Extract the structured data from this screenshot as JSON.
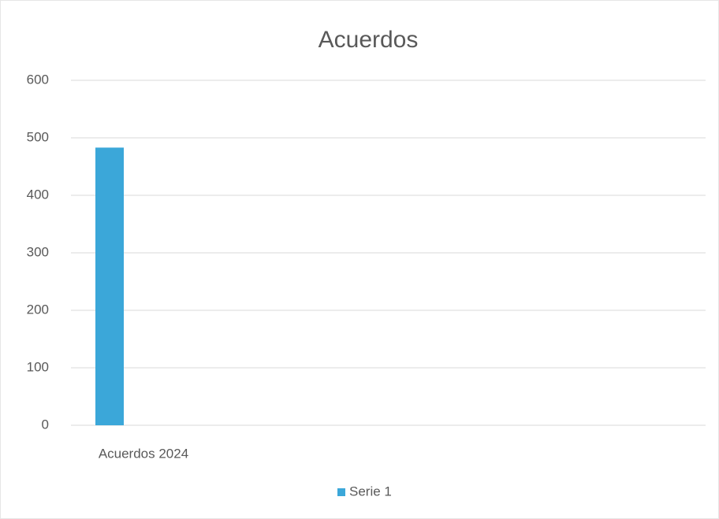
{
  "chart_data": {
    "type": "bar",
    "title": "Acuerdos",
    "categories": [
      "Acuerdos 2024"
    ],
    "series": [
      {
        "name": "Serie 1",
        "color": "#3ba7d9",
        "values": [
          483
        ]
      }
    ],
    "ylim": [
      0,
      600
    ],
    "yticks": [
      0,
      100,
      200,
      300,
      400,
      500,
      600
    ],
    "grid": true
  }
}
